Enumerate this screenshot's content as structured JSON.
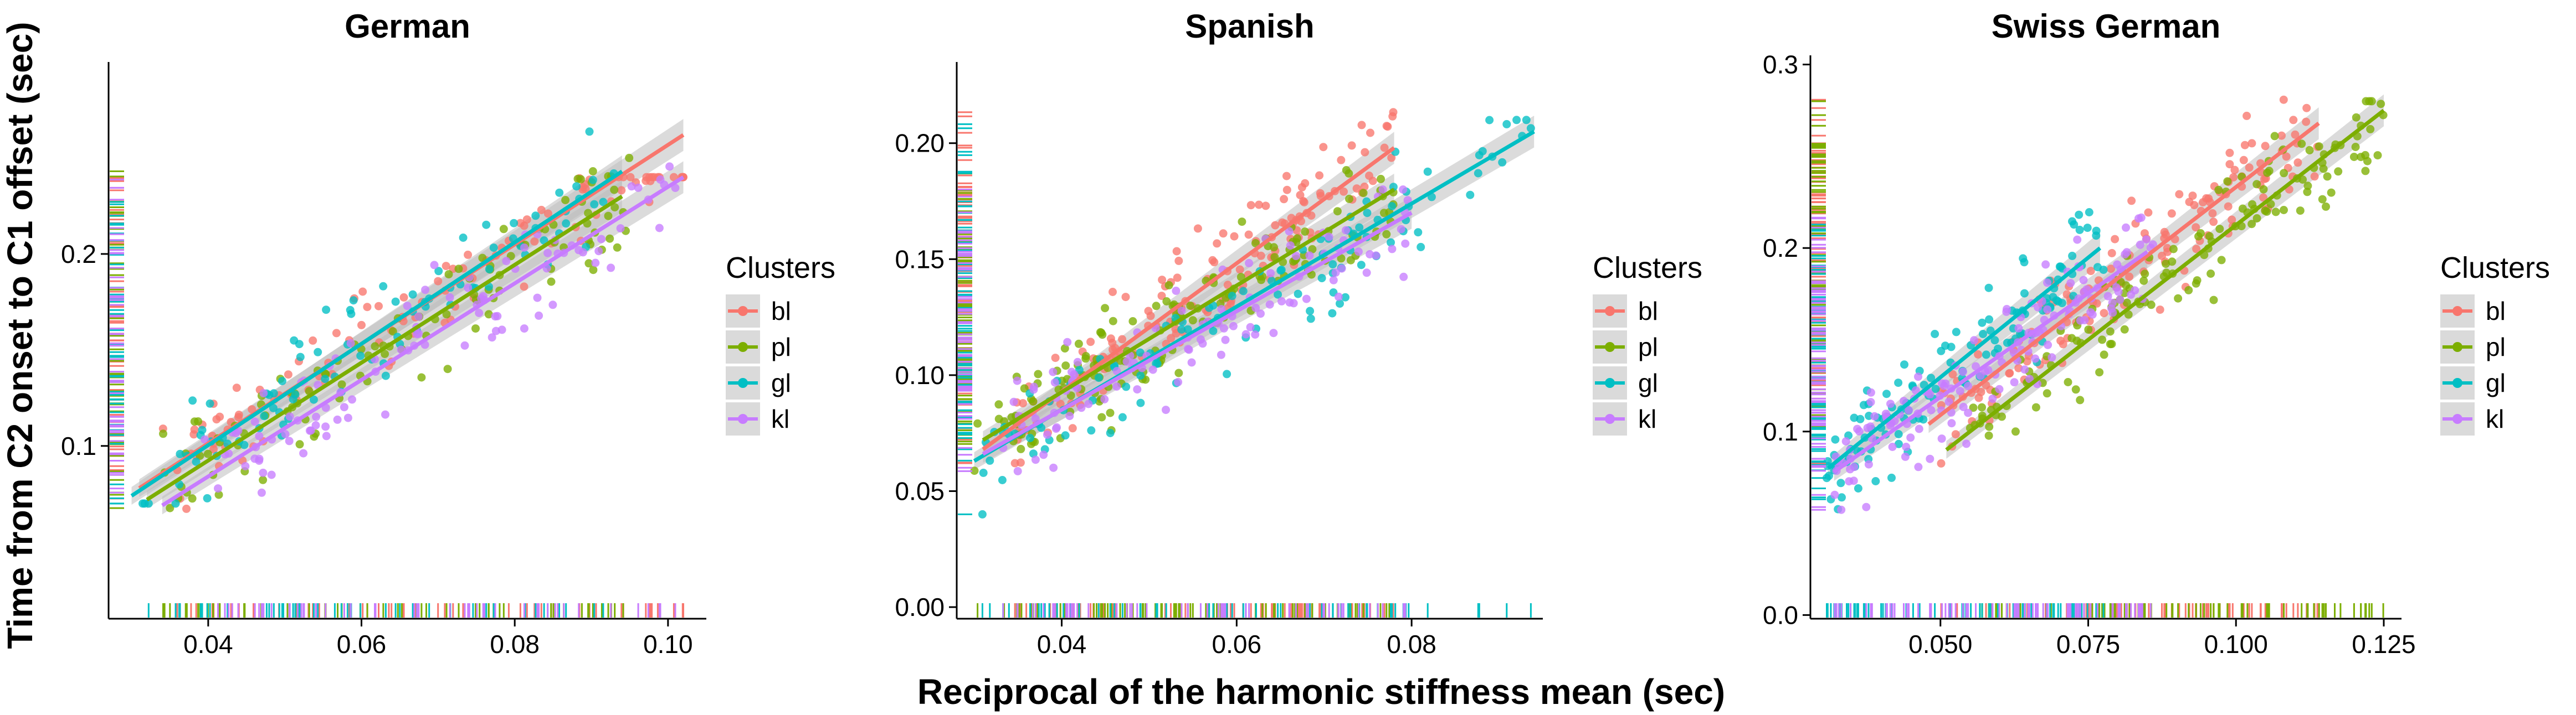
{
  "figure": {
    "xlabel": "Reciprocal of the harmonic stiffness mean (sec)",
    "ylabel": "Time from C2 onset to C1 offset (sec)"
  },
  "colors": {
    "bl": "#F8766D",
    "pl": "#7CAE00",
    "gl": "#00BFC4",
    "kl": "#C77CFF",
    "band": "#BEBEBE"
  },
  "legend": {
    "title": "Clusters",
    "placement": "right",
    "entries": [
      "bl",
      "pl",
      "gl",
      "kl"
    ]
  },
  "chart_data": [
    {
      "type": "scatter",
      "title": "German",
      "xlim": [
        0.027,
        0.105
      ],
      "ylim": [
        0.01,
        0.3
      ],
      "xticks": [
        0.04,
        0.06,
        0.08,
        0.1
      ],
      "xtick_labels": [
        "0.04",
        "0.06",
        "0.08",
        "0.10"
      ],
      "yticks": [
        0.1,
        0.2
      ],
      "ytick_labels": [
        "0.1",
        "0.2"
      ],
      "series": [
        {
          "name": "bl",
          "x_range": [
            0.034,
            0.102
          ],
          "y_range": [
            0.04,
            0.24
          ],
          "n": 110,
          "fit": [
            [
              0.031,
              0.078
            ],
            [
              0.102,
              0.262
            ]
          ]
        },
        {
          "name": "pl",
          "x_range": [
            0.033,
            0.095
          ],
          "y_range": [
            0.02,
            0.25
          ],
          "n": 110,
          "fit": [
            [
              0.032,
              0.072
            ],
            [
              0.094,
              0.23
            ]
          ]
        },
        {
          "name": "gl",
          "x_range": [
            0.03,
            0.094
          ],
          "y_range": [
            0.07,
            0.27
          ],
          "n": 90,
          "fit": [
            [
              0.03,
              0.074
            ],
            [
              0.094,
              0.243
            ]
          ]
        },
        {
          "name": "kl",
          "x_range": [
            0.038,
            0.101
          ],
          "y_range": [
            0.02,
            0.28
          ],
          "n": 100,
          "fit": [
            [
              0.034,
              0.069
            ],
            [
              0.102,
              0.24
            ]
          ]
        }
      ]
    },
    {
      "type": "scatter",
      "title": "Spanish",
      "xlim": [
        0.028,
        0.095
      ],
      "ylim": [
        -0.005,
        0.235
      ],
      "xticks": [
        0.04,
        0.06,
        0.08
      ],
      "xtick_labels": [
        "0.04",
        "0.06",
        "0.08"
      ],
      "yticks": [
        0.0,
        0.05,
        0.1,
        0.15,
        0.2
      ],
      "ytick_labels": [
        "0.00",
        "0.05",
        "0.10",
        "0.15",
        "0.20"
      ],
      "series": [
        {
          "name": "bl",
          "x_range": [
            0.034,
            0.078
          ],
          "y_range": [
            0.05,
            0.22
          ],
          "n": 150,
          "fit": [
            [
              0.031,
              0.068
            ],
            [
              0.078,
              0.198
            ]
          ]
        },
        {
          "name": "pl",
          "x_range": [
            0.03,
            0.078
          ],
          "y_range": [
            0.02,
            0.21
          ],
          "n": 150,
          "fit": [
            [
              0.031,
              0.072
            ],
            [
              0.078,
              0.18
            ]
          ]
        },
        {
          "name": "gl",
          "x_range": [
            0.03,
            0.094
          ],
          "y_range": [
            0.04,
            0.21
          ],
          "n": 110,
          "fit": [
            [
              0.03,
              0.063
            ],
            [
              0.094,
              0.205
            ]
          ]
        },
        {
          "name": "kl",
          "x_range": [
            0.033,
            0.08
          ],
          "y_range": [
            0.0,
            0.18
          ],
          "n": 110,
          "fit": [
            [
              0.031,
              0.066
            ],
            [
              0.08,
              0.17
            ]
          ]
        }
      ]
    },
    {
      "type": "scatter",
      "title": "Swiss German",
      "xlim": [
        0.028,
        0.128
      ],
      "ylim": [
        -0.002,
        0.305
      ],
      "xticks": [
        0.05,
        0.075,
        0.1,
        0.125
      ],
      "xtick_labels": [
        "0.050",
        "0.075",
        "0.100",
        "0.125"
      ],
      "yticks": [
        0.0,
        0.1,
        0.2,
        0.3
      ],
      "ytick_labels": [
        "0.0",
        "0.1",
        "0.2",
        "0.3"
      ],
      "series": [
        {
          "name": "bl",
          "x_range": [
            0.05,
            0.115
          ],
          "y_range": [
            0.06,
            0.29
          ],
          "n": 150,
          "fit": [
            [
              0.048,
              0.104
            ],
            [
              0.114,
              0.268
            ]
          ]
        },
        {
          "name": "pl",
          "x_range": [
            0.055,
            0.125
          ],
          "y_range": [
            0.06,
            0.28
          ],
          "n": 150,
          "fit": [
            [
              0.051,
              0.09
            ],
            [
              0.125,
              0.275
            ]
          ]
        },
        {
          "name": "gl",
          "x_range": [
            0.03,
            0.078
          ],
          "y_range": [
            0.02,
            0.27
          ],
          "n": 130,
          "fit": [
            [
              0.031,
              0.08
            ],
            [
              0.077,
              0.2
            ]
          ]
        },
        {
          "name": "kl",
          "x_range": [
            0.032,
            0.086
          ],
          "y_range": [
            0.01,
            0.25
          ],
          "n": 150,
          "fit": [
            [
              0.032,
              0.078
            ],
            [
              0.085,
              0.198
            ]
          ]
        }
      ]
    }
  ]
}
